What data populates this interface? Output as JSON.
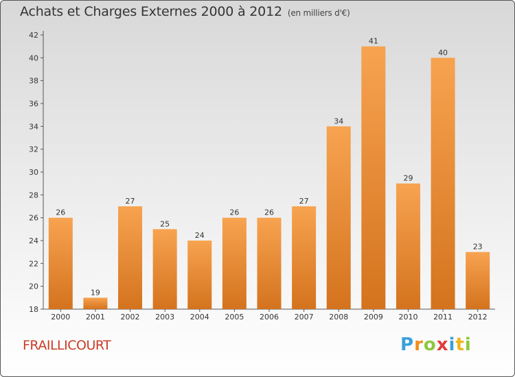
{
  "header": {
    "title": "Achats et Charges Externes 2000 à 2012",
    "subtitle": "(en milliers d'€)"
  },
  "footer": {
    "place": "FRAILLICOURT",
    "logo_text": "Proxiti",
    "logo_letters": [
      {
        "ch": "P",
        "color": "#3aa0dc"
      },
      {
        "ch": "r",
        "color": "#f08c1e"
      },
      {
        "ch": "o",
        "color": "#8cc83c"
      },
      {
        "ch": "x",
        "color": "#e03c3c"
      },
      {
        "ch": "i",
        "color": "#3aa0dc"
      },
      {
        "ch": "t",
        "color": "#f0b41e"
      },
      {
        "ch": "i",
        "color": "#8cc83c"
      }
    ]
  },
  "chart_data": {
    "type": "bar",
    "title": "Achats et Charges Externes 2000 à 2012",
    "subtitle": "(en milliers d'€)",
    "categories": [
      "2000",
      "2001",
      "2002",
      "2003",
      "2004",
      "2005",
      "2006",
      "2007",
      "2008",
      "2009",
      "2010",
      "2011",
      "2012"
    ],
    "values": [
      26,
      19,
      27,
      25,
      24,
      26,
      26,
      27,
      34,
      41,
      29,
      40,
      23
    ],
    "ylim": [
      18,
      42
    ],
    "yticks": [
      18,
      20,
      22,
      24,
      26,
      28,
      30,
      32,
      34,
      36,
      38,
      40,
      42
    ],
    "grid": false,
    "bar_color_top": "#f7a350",
    "bar_color_bottom": "#d4731e"
  }
}
